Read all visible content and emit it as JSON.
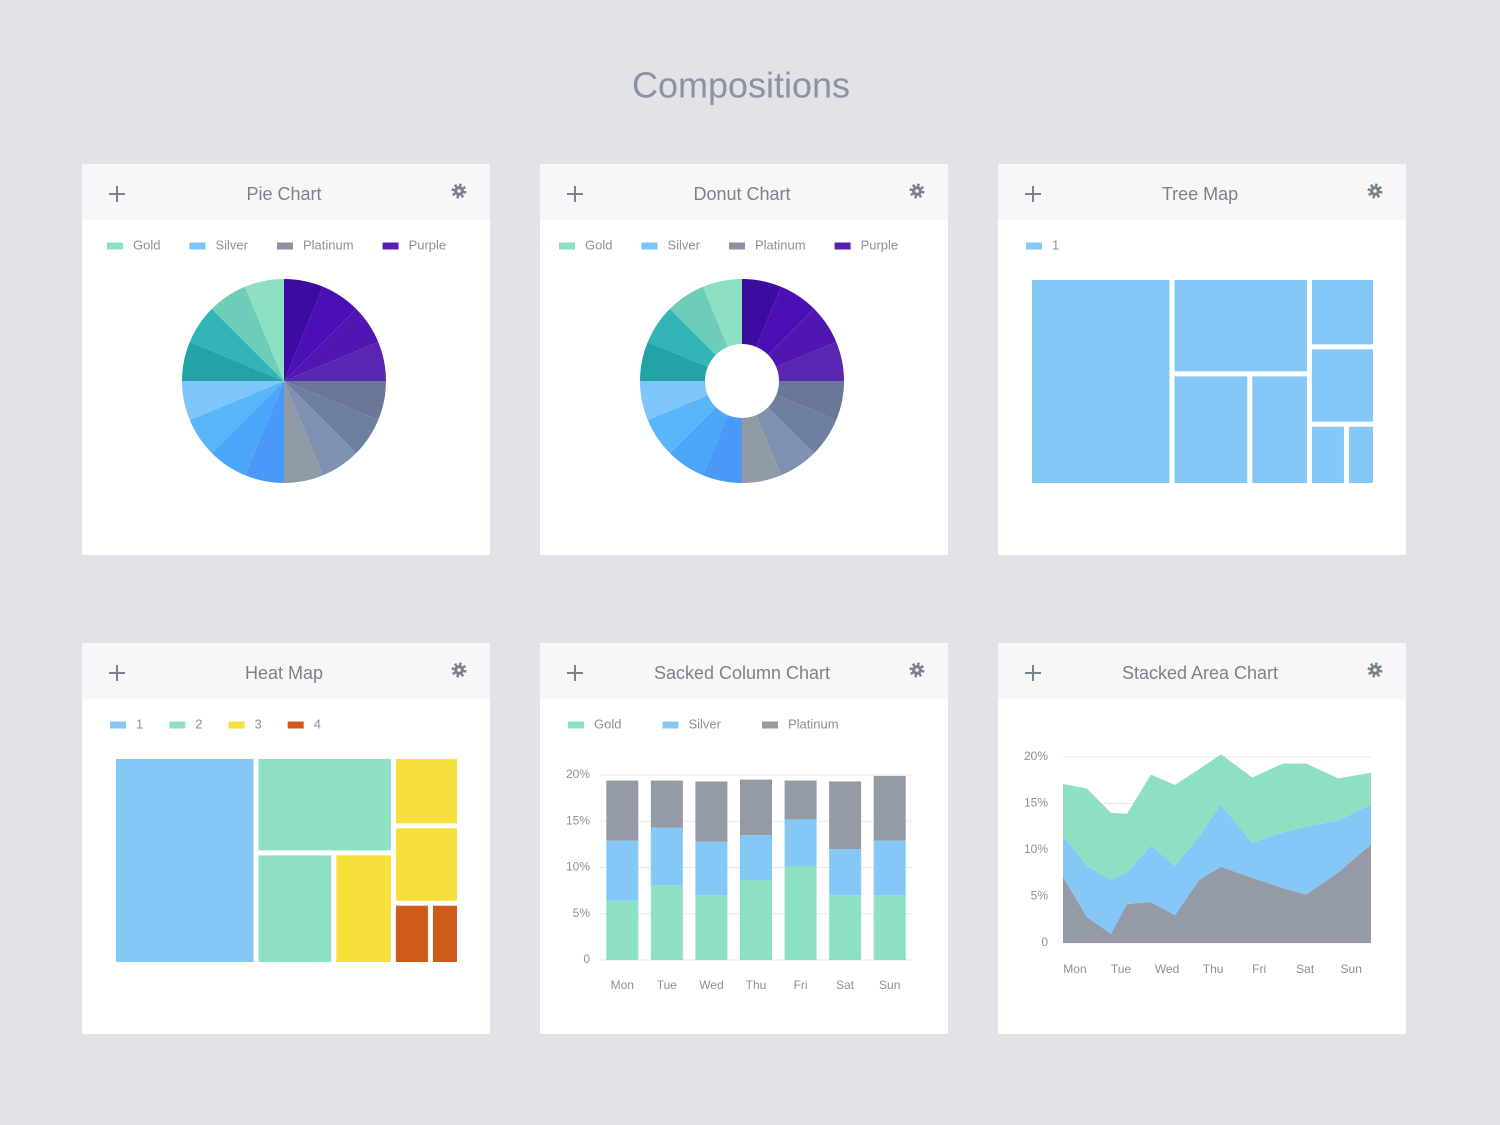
{
  "title": "Compositions",
  "chart_data": [
    {
      "type": "pie",
      "title": "Pie Chart",
      "series": [
        {
          "name": "Gold",
          "color": "#8ee0c3",
          "colors": [
            "#22a3a8",
            "#33b4b6",
            "#6dcdb9",
            "#8ee0c3"
          ],
          "values": [
            6.25,
            6.25,
            6.25,
            6.25
          ]
        },
        {
          "name": "Silver",
          "color": "#7ec5fb",
          "colors": [
            "#4a98f8",
            "#4aa6f8",
            "#5ab6fa",
            "#7ec5fb"
          ],
          "values": [
            6.25,
            6.25,
            6.25,
            6.25
          ]
        },
        {
          "name": "Platinum",
          "color": "#8a93a3",
          "colors": [
            "#6a7898",
            "#6e7ea1",
            "#8090b2",
            "#9099a6"
          ],
          "values": [
            6.25,
            6.25,
            6.25,
            6.25
          ]
        },
        {
          "name": "Purple",
          "color": "#5a1fb0",
          "colors": [
            "#3d0ba0",
            "#4a0fb5",
            "#5016b2",
            "#5a25b0"
          ],
          "values": [
            6.25,
            6.25,
            6.25,
            6.25
          ]
        }
      ]
    },
    {
      "type": "donut",
      "title": "Donut Chart",
      "series": [
        {
          "name": "Gold",
          "color": "#8ee0c3",
          "colors": [
            "#22a3a8",
            "#33b4b6",
            "#6dcdb9",
            "#8ee0c3"
          ],
          "values": [
            6.25,
            6.25,
            6.25,
            6.25
          ]
        },
        {
          "name": "Silver",
          "color": "#7ec5fb",
          "colors": [
            "#4a98f8",
            "#4aa6f8",
            "#5ab6fa",
            "#7ec5fb"
          ],
          "values": [
            6.25,
            6.25,
            6.25,
            6.25
          ]
        },
        {
          "name": "Platinum",
          "color": "#8a93a3",
          "colors": [
            "#6a7898",
            "#6e7ea1",
            "#8090b2",
            "#9099a6"
          ],
          "values": [
            6.25,
            6.25,
            6.25,
            6.25
          ]
        },
        {
          "name": "Purple",
          "color": "#5a1fb0",
          "colors": [
            "#3d0ba0",
            "#4a0fb5",
            "#5016b2",
            "#5a25b0"
          ],
          "values": [
            6.25,
            6.25,
            6.25,
            6.25
          ]
        }
      ]
    },
    {
      "type": "treemap",
      "title": "Tree Map",
      "color": "#85c8f8",
      "series": [
        {
          "name": "1",
          "color": "#85c8f8"
        }
      ],
      "values": [
        27,
        [
          12,
          [
            8,
            6
          ]
        ],
        [
          4,
          4.5,
          [
            2,
            1.5
          ]
        ]
      ]
    },
    {
      "type": "treemap",
      "title": "Heat Map",
      "series": [
        {
          "name": "1",
          "color": "#85c8f8"
        },
        {
          "name": "2",
          "color": "#8ee0c2"
        },
        {
          "name": "3",
          "color": "#f7e03c"
        },
        {
          "name": "4",
          "color": "#cf5a1a"
        }
      ],
      "values": [
        {
          "value": 27,
          "color": "#85c8f8"
        },
        [
          {
            "value": 12,
            "color": "#8ee0c2"
          },
          [
            {
              "value": 8,
              "color": "#8ee0c2"
            },
            {
              "value": 6,
              "color": "#f7e03c"
            }
          ]
        ],
        [
          {
            "value": 4,
            "color": "#f7e03c"
          },
          {
            "value": 4.5,
            "color": "#f7e03c"
          },
          [
            {
              "value": 2,
              "color": "#cf5a1a"
            },
            {
              "value": 1.5,
              "color": "#cf5a1a"
            }
          ]
        ]
      ]
    },
    {
      "type": "stacked_bar",
      "title": "Sacked Column Chart",
      "categories": [
        "Mon",
        "Tue",
        "Wed",
        "Thu",
        "Fri",
        "Sat",
        "Sun"
      ],
      "series": [
        {
          "name": "Gold",
          "color": "#8ee0c2",
          "values": [
            6.4,
            8.1,
            7.0,
            8.6,
            10.1,
            7.0,
            7.0
          ]
        },
        {
          "name": "Silver",
          "color": "#85c8f8",
          "values": [
            6.5,
            6.2,
            5.8,
            4.9,
            5.1,
            5.0,
            5.9
          ]
        },
        {
          "name": "Platinum",
          "color": "#949ba6",
          "values": [
            6.5,
            5.1,
            6.5,
            6.0,
            4.2,
            7.3,
            7.0
          ]
        }
      ],
      "ylim": [
        0,
        20
      ],
      "yticks": [
        0,
        {
          "value": 5,
          "label": "5%"
        },
        {
          "value": 10,
          "label": "10%"
        },
        {
          "value": 15,
          "label": "15%"
        },
        {
          "value": 20,
          "label": "20%"
        }
      ],
      "grid": true
    },
    {
      "type": "stacked_area",
      "title": "Stacked Area Chart",
      "x": [
        -0.26,
        0.26,
        0.78,
        1.13,
        1.65,
        2.17,
        2.7,
        3.17,
        3.85,
        4.52,
        5.02,
        5.72,
        6.43
      ],
      "series": [
        {
          "color": "#949ba6",
          "values": [
            7.1,
            2.8,
            1.0,
            4.2,
            4.4,
            3.0,
            6.8,
            8.2,
            7.0,
            5.9,
            5.2,
            7.6,
            10.6
          ]
        },
        {
          "color": "#85c8f8",
          "values": [
            4.4,
            5.5,
            5.8,
            3.4,
            6.1,
            5.3,
            4.7,
            6.7,
            3.8,
            6.0,
            7.3,
            5.6,
            4.3
          ]
        },
        {
          "color": "#8ee0c2",
          "values": [
            5.6,
            8.3,
            7.2,
            6.3,
            7.6,
            8.7,
            7.2,
            5.4,
            7.0,
            7.4,
            6.8,
            4.5,
            3.4
          ]
        }
      ],
      "xlim": [
        -0.26,
        6.43
      ],
      "xticks": [
        {
          "value": 0,
          "label": "Mon"
        },
        {
          "value": 1,
          "label": "Tue"
        },
        {
          "value": 2,
          "label": "Wed"
        },
        {
          "value": 3,
          "label": "Thu"
        },
        {
          "value": 4,
          "label": "Fri"
        },
        {
          "value": 5,
          "label": "Sat"
        },
        {
          "value": 6,
          "label": "Sun"
        }
      ],
      "ylim": [
        0,
        20
      ],
      "yticks": [
        0,
        {
          "value": 5,
          "label": "5%"
        },
        {
          "value": 10,
          "label": "10%"
        },
        {
          "value": 15,
          "label": "15%"
        },
        {
          "value": 20,
          "label": "20%"
        }
      ],
      "grid": true
    }
  ]
}
